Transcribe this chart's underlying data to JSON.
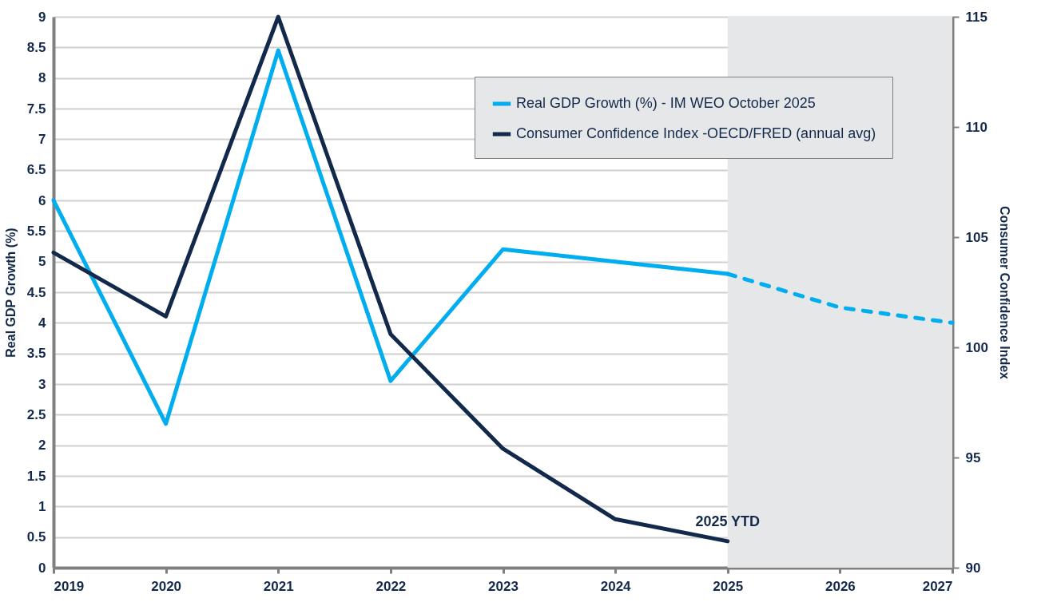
{
  "chart_data": {
    "type": "line",
    "xlabel": null,
    "ylabel": "Real GDP Growth (%)",
    "y2label": "Consumer Confidence Index",
    "xlim": [
      2019,
      2027
    ],
    "xticks": [
      2019,
      2020,
      2021,
      2022,
      2023,
      2024,
      2025,
      2026,
      2027
    ],
    "ylim": [
      0,
      9
    ],
    "yticks": [
      0,
      0.5,
      1,
      1.5,
      2,
      2.5,
      3,
      3.5,
      4,
      4.5,
      5,
      5.5,
      6,
      6.5,
      7,
      7.5,
      8,
      8.5,
      9
    ],
    "y2lim": [
      90,
      115
    ],
    "y2ticks": [
      90,
      95,
      100,
      105,
      110,
      115
    ],
    "grid": "y",
    "legend": "top right",
    "marker": "none",
    "series": [
      {
        "name": "Real GDP Growth (%) - IM WEO October 2025",
        "color": "#00aeef",
        "line_style": "solid",
        "x": [
          2019,
          2020,
          2021,
          2022,
          2023,
          2024,
          2025
        ],
        "values": [
          6.0,
          2.35,
          8.45,
          3.05,
          5.2,
          5.0,
          4.8
        ]
      },
      {
        "color": "#00aeef",
        "line_style": "dashed",
        "x": [
          2025,
          2026,
          2027
        ],
        "values": [
          4.8,
          4.25,
          4.0
        ]
      },
      {
        "name": "Consumer Confidence Index -OECD/FRED (annual avg)",
        "color": "#13294b",
        "line_style": "solid",
        "axis": "y2",
        "x": [
          2019,
          2020,
          2021,
          2022,
          2023,
          2024,
          2025
        ],
        "values": [
          104.3,
          101.4,
          115.0,
          100.6,
          95.4,
          92.2,
          91.2
        ]
      }
    ],
    "bands": [
      {
        "axis": "x",
        "from": 2025,
        "to": 2027,
        "color": "#e6e7e9"
      }
    ],
    "annotations": [
      "2025 YTD"
    ]
  }
}
